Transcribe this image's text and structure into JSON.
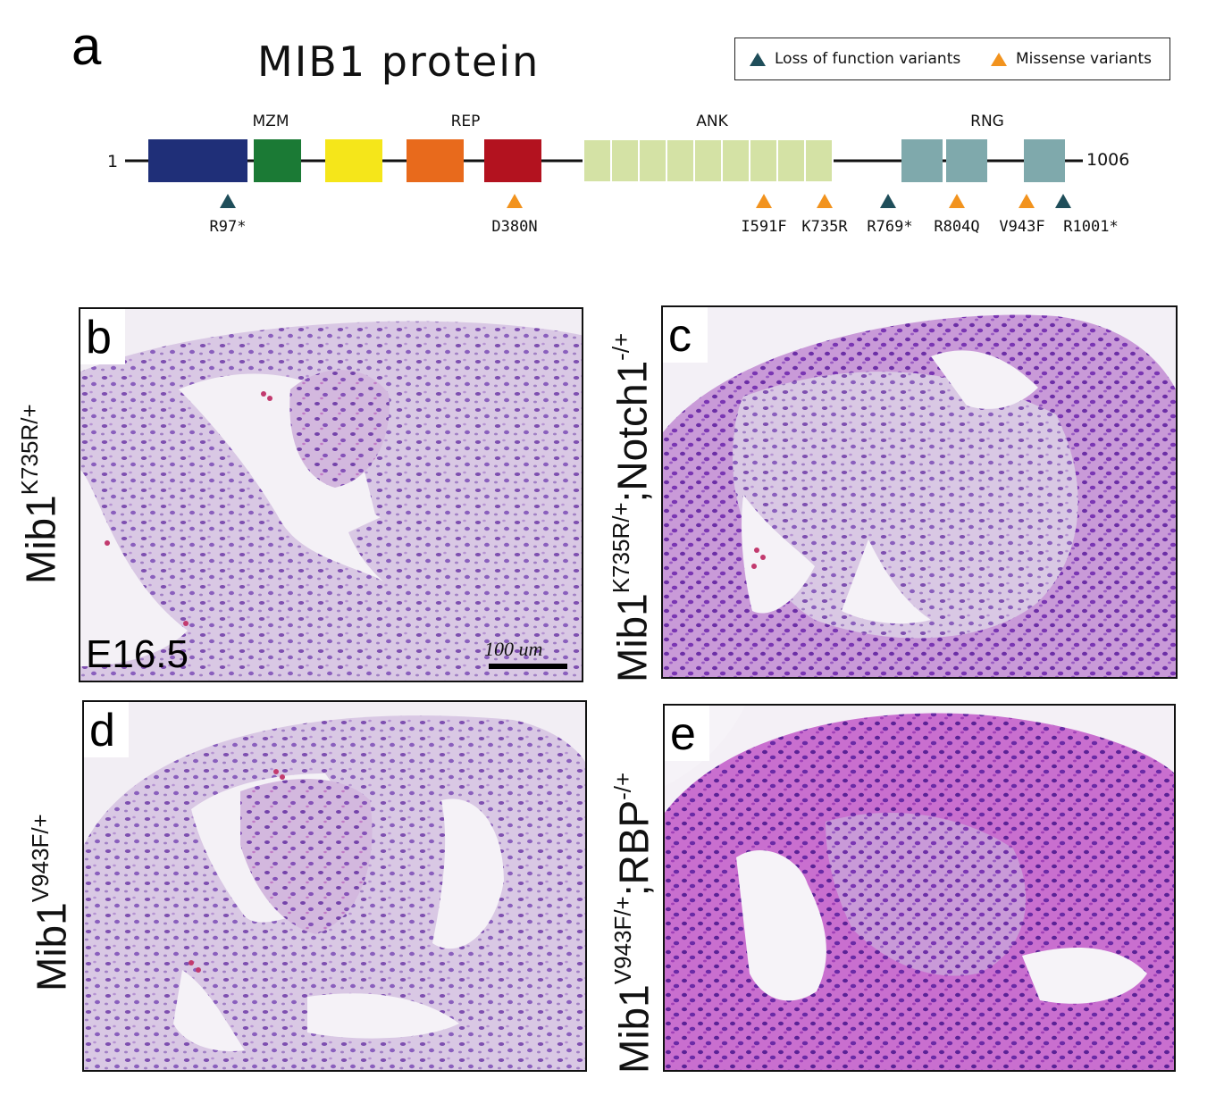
{
  "panel_a": {
    "letter": "a",
    "title": "MIB1 protein",
    "legend": {
      "lof_label": "Loss of function variants",
      "missense_label": "Missense variants",
      "lof_color": "#1f4e5a",
      "missense_color": "#f2931e"
    },
    "domain_labels": [
      "MZM",
      "REP",
      "ANK",
      "RNG"
    ],
    "start": "1",
    "end": "1006",
    "domain_colors": {
      "mzm_1": "#1f2f78",
      "mzm_2": "#1b7a35",
      "mib_herc2": "#f5e61a",
      "rep_1": "#e86a1c",
      "rep_2": "#b3121f",
      "ank": "#d4e2a5",
      "rng": "#7fa9ac"
    },
    "variants": [
      {
        "label": "R97*",
        "type": "lof"
      },
      {
        "label": "D380N",
        "type": "missense"
      },
      {
        "label": "I591F",
        "type": "missense"
      },
      {
        "label": "K735R",
        "type": "missense"
      },
      {
        "label": "R769*",
        "type": "lof"
      },
      {
        "label": "R804Q",
        "type": "missense"
      },
      {
        "label": "V943F",
        "type": "missense"
      },
      {
        "label": "R1001*",
        "type": "lof"
      }
    ]
  },
  "panels": {
    "b": {
      "letter": "b",
      "stage": "E16.5",
      "scale": "100 um"
    },
    "c": {
      "letter": "c"
    },
    "d": {
      "letter": "d"
    },
    "e": {
      "letter": "e"
    }
  },
  "side_labels": {
    "b": {
      "base": "Mib1",
      "sup": "K735R/+"
    },
    "c": {
      "base1": "Mib1",
      "sup1": "K735R/+",
      "base2": ";Notch1",
      "sup2": "-/+"
    },
    "d": {
      "base": "Mib1",
      "sup": "V943F/+"
    },
    "e": {
      "base1": "Mib1",
      "sup1": "V943F/+",
      "base2": ";RBP",
      "sup2": "-/+"
    }
  }
}
